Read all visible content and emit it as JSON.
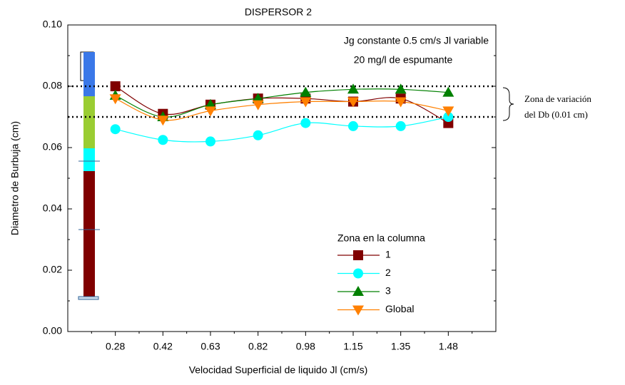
{
  "chart_data": {
    "type": "line",
    "title": "DISPERSOR 2",
    "annotations": [
      "Jg constante 0.5 cm/s Jl variable",
      "20 mg/l de espumante",
      "Zona de variación",
      "del Db (0.01 cm)"
    ],
    "x_label": "Velocidad Superficial de liquido Jl (cm/s)",
    "y_label": "Diametro de Burbuja (cm)",
    "legend_title": "Zona en la columna",
    "categories": [
      "0.28",
      "0.42",
      "0.63",
      "0.82",
      "0.98",
      "1.15",
      "1.35",
      "1.48"
    ],
    "series": [
      {
        "name": "1",
        "color": "#800000",
        "marker": "square",
        "values": [
          0.08,
          0.071,
          0.074,
          0.076,
          0.076,
          0.075,
          0.076,
          0.068
        ]
      },
      {
        "name": "2",
        "color": "#00ffff",
        "marker": "circle",
        "values": [
          0.066,
          0.0625,
          0.062,
          0.064,
          0.068,
          0.067,
          0.067,
          0.07
        ]
      },
      {
        "name": "3",
        "color": "#008000",
        "marker": "triangle-up",
        "values": [
          0.077,
          0.07,
          0.074,
          0.076,
          0.078,
          0.079,
          0.079,
          0.078
        ]
      },
      {
        "name": "Global",
        "color": "#ff8000",
        "marker": "triangle-down",
        "values": [
          0.076,
          0.069,
          0.072,
          0.074,
          0.075,
          0.075,
          0.075,
          0.072
        ]
      }
    ],
    "reference_lines": [
      0.08,
      0.07
    ],
    "ylim": [
      0,
      0.1
    ],
    "yticks": [
      {
        "value": 0,
        "label": "0.00"
      },
      0.02,
      0.04,
      0.06,
      0.08,
      {
        "value": 0.1,
        "label": "0.10"
      }
    ]
  }
}
